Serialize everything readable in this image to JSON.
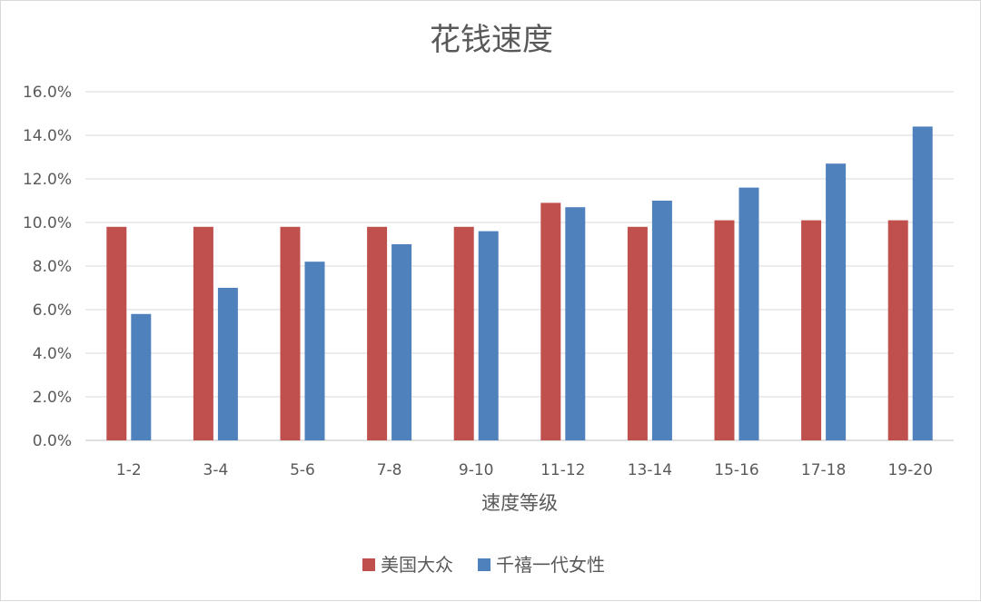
{
  "chart_data": {
    "type": "bar",
    "title": "花钱速度",
    "xlabel": "速度等级",
    "ylabel": "",
    "categories": [
      "1-2",
      "3-4",
      "5-6",
      "7-8",
      "9-10",
      "11-12",
      "13-14",
      "15-16",
      "17-18",
      "19-20"
    ],
    "series": [
      {
        "name": "美国大众",
        "color": "#c0504d",
        "values": [
          9.8,
          9.8,
          9.8,
          9.8,
          9.8,
          10.9,
          9.8,
          10.1,
          10.1,
          10.1
        ]
      },
      {
        "name": "千禧一代女性",
        "color": "#4f81bd",
        "values": [
          5.8,
          7.0,
          8.2,
          9.0,
          9.6,
          10.7,
          11.0,
          11.6,
          12.7,
          14.4
        ]
      }
    ],
    "ylim": [
      0,
      16
    ],
    "yticks": [
      "0.0%",
      "2.0%",
      "4.0%",
      "6.0%",
      "8.0%",
      "10.0%",
      "12.0%",
      "14.0%",
      "16.0%"
    ],
    "grid": true,
    "legend_position": "bottom"
  }
}
